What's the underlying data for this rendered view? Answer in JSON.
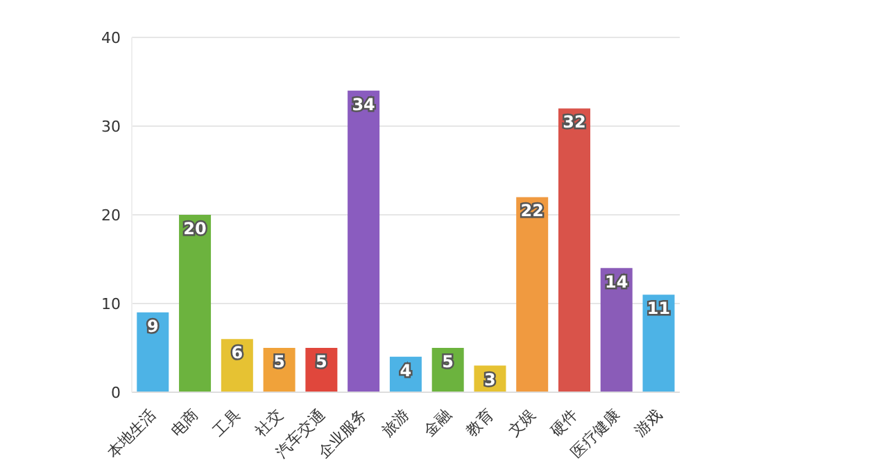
{
  "chart_data": {
    "type": "bar",
    "categories": [
      "本地生活",
      "电商",
      "工具",
      "社交",
      "汽车交通",
      "企业服务",
      "旅游",
      "金融",
      "教育",
      "文娱",
      "硬件",
      "医疗健康",
      "游戏"
    ],
    "values": [
      9,
      20,
      6,
      5,
      5,
      34,
      4,
      5,
      3,
      22,
      32,
      14,
      11
    ],
    "colors": [
      "#4db3e6",
      "#6cb33e",
      "#e6c233",
      "#f0a23a",
      "#e0473c",
      "#8a5cbf",
      "#4db3e6",
      "#6cb33e",
      "#e6c233",
      "#f09a40",
      "#d9534a",
      "#8a5cb8",
      "#4db3e6"
    ],
    "ylim": [
      0,
      40
    ],
    "yticks": [
      0,
      10,
      20,
      30,
      40
    ],
    "grid": "y",
    "data_labels": true
  }
}
